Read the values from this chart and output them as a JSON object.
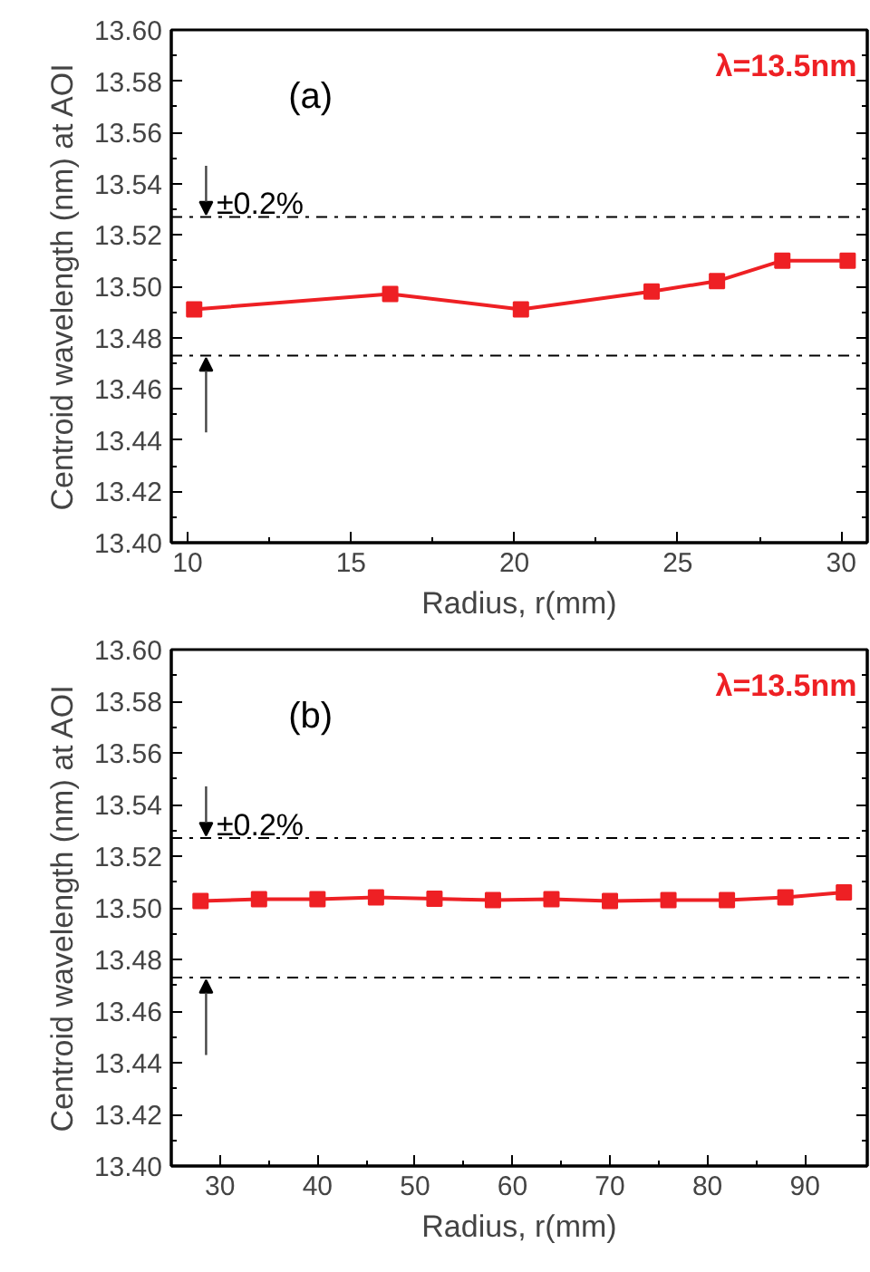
{
  "chart_data": [
    {
      "type": "line",
      "xlabel": "Radius, r(mm)",
      "ylabel": "Centroid wavelength (nm) at AOI",
      "marker": "square",
      "line_style": "solid",
      "grid": false,
      "x": [
        10.2,
        16.2,
        20.2,
        24.2,
        26.2,
        28.2,
        30.2
      ],
      "series": [
        {
          "color": "#ee2024",
          "values": [
            13.491,
            13.497,
            13.491,
            13.498,
            13.502,
            13.51,
            13.51
          ]
        }
      ],
      "xlim": [
        9.5,
        30.8
      ],
      "xticks": [
        10,
        15,
        20,
        25,
        30
      ],
      "ylim": [
        13.4,
        13.6
      ],
      "yticks": [
        {
          "value": 13.4,
          "label": "13.40"
        },
        {
          "value": 13.42,
          "label": "13.42"
        },
        {
          "value": 13.44,
          "label": "13.44"
        },
        {
          "value": 13.46,
          "label": "13.46"
        },
        {
          "value": 13.48,
          "label": "13.48"
        },
        {
          "value": 13.5,
          "label": "13.50"
        },
        {
          "value": 13.52,
          "label": "13.52"
        },
        {
          "value": 13.54,
          "label": "13.54"
        },
        {
          "value": 13.56,
          "label": "13.56"
        },
        {
          "value": 13.58,
          "label": "13.58"
        },
        {
          "value": 13.6,
          "label": "13.60"
        }
      ],
      "ref_lines": [
        {
          "axis": "y",
          "value": 13.527,
          "color": "#000000",
          "line_style": "dashdot"
        },
        {
          "axis": "y",
          "value": 13.473,
          "color": "#000000",
          "line_style": "dashdot"
        }
      ],
      "annotations": [
        "(a)",
        "λ=13.5nm",
        "±0.2%"
      ]
    },
    {
      "type": "line",
      "xlabel": "Radius, r(mm)",
      "ylabel": "Centroid wavelength (nm) at AOI",
      "marker": "square",
      "line_style": "solid",
      "grid": false,
      "x": [
        28,
        34,
        40,
        46,
        52,
        58,
        64,
        70,
        76,
        82,
        88,
        94
      ],
      "series": [
        {
          "color": "#ee2024",
          "values": [
            13.5026,
            13.5033,
            13.5033,
            13.504,
            13.5035,
            13.503,
            13.5033,
            13.5026,
            13.503,
            13.503,
            13.504,
            13.506
          ]
        }
      ],
      "xlim": [
        25,
        96.4
      ],
      "xticks": [
        30,
        40,
        50,
        60,
        70,
        80,
        90
      ],
      "ylim": [
        13.4,
        13.6
      ],
      "yticks": [
        {
          "value": 13.4,
          "label": "13.40"
        },
        {
          "value": 13.42,
          "label": "13.42"
        },
        {
          "value": 13.44,
          "label": "13.44"
        },
        {
          "value": 13.46,
          "label": "13.46"
        },
        {
          "value": 13.48,
          "label": "13.48"
        },
        {
          "value": 13.5,
          "label": "13.50"
        },
        {
          "value": 13.52,
          "label": "13.52"
        },
        {
          "value": 13.54,
          "label": "13.54"
        },
        {
          "value": 13.56,
          "label": "13.56"
        },
        {
          "value": 13.58,
          "label": "13.58"
        },
        {
          "value": 13.6,
          "label": "13.60"
        }
      ],
      "ref_lines": [
        {
          "axis": "y",
          "value": 13.527,
          "color": "#000000",
          "line_style": "dashdot"
        },
        {
          "axis": "y",
          "value": 13.473,
          "color": "#000000",
          "line_style": "dashdot"
        }
      ],
      "annotations": [
        "(b)",
        "λ=13.5nm",
        "±0.2%"
      ]
    }
  ]
}
